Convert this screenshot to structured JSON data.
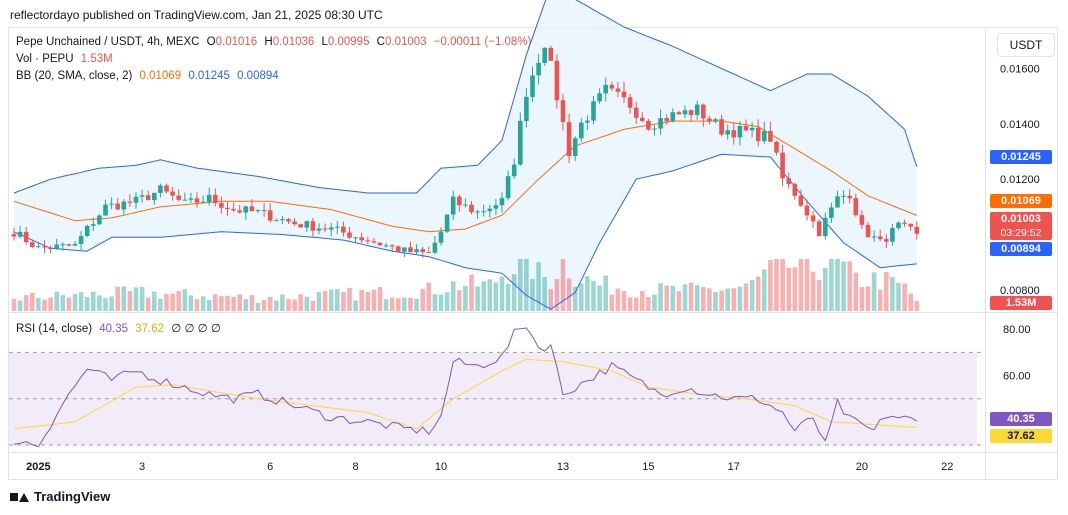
{
  "header": {
    "text": "reflectordayo published on TradingView.com, Jan 21, 2025 08:30 UTC"
  },
  "legend": {
    "symbol": "Pepe Unchained / USDT, 4h, MEXC",
    "o_label": "O",
    "o_value": "0.01016",
    "h_label": "H",
    "h_value": "0.01036",
    "l_label": "L",
    "l_value": "0.00995",
    "c_label": "C",
    "c_value": "0.01003",
    "change": "−0.00011 (−1.08%)",
    "vol_label": "Vol · PEPU",
    "vol_value": "1.53M",
    "bb_label": "BB (20, SMA, close, 2)",
    "bb_basis": "0.01069",
    "bb_upper": "0.01245",
    "bb_lower": "0.00894",
    "rsi_label": "RSI (14, close)",
    "rsi_value": "40.35",
    "rsi_ma": "37.62",
    "rsi_extra": "∅ ∅ ∅ ∅"
  },
  "currency": "USDT",
  "footer": {
    "brand": "TradingView"
  },
  "badges": {
    "upper": "0.01245",
    "basis": "0.01069",
    "close": "0.01003",
    "countdown": "03:29:52",
    "lower": "0.00894",
    "volume": "1.53M",
    "rsi": "40.35",
    "rsi_ma": "37.62"
  },
  "colors": {
    "up": "#26a69a",
    "down": "#ef5350",
    "bb_basis": "#ff6d00",
    "bb_band": "#2962ff",
    "bb_fill": "#e3f2fd",
    "rsi_line": "#7e57c2",
    "rsi_ma": "#fdd835",
    "rsi_bg": "#ede7f6"
  },
  "chart_data": {
    "type": "candlestick",
    "price_axis": {
      "ticks": [
        "0.01600",
        "0.01400",
        "0.01200",
        "0.01000",
        "0.00800"
      ],
      "ylim": [
        0.0072,
        0.0175
      ]
    },
    "rsi_axis": {
      "ticks": [
        "80.00",
        "60.00"
      ],
      "levels": [
        70,
        50,
        30
      ],
      "ylim": [
        27,
        87
      ]
    },
    "time_axis": {
      "ticks": [
        "2025",
        "3",
        "6",
        "8",
        "10",
        "13",
        "15",
        "17",
        "20",
        "22"
      ],
      "tick_index": [
        4,
        21,
        42,
        56,
        70,
        90,
        104,
        118,
        139,
        153
      ]
    },
    "anchors": {
      "close": [
        [
          0,
          0.0101
        ],
        [
          4,
          0.0095
        ],
        [
          10,
          0.0096
        ],
        [
          12,
          0.0102
        ],
        [
          15,
          0.011
        ],
        [
          20,
          0.0112
        ],
        [
          24,
          0.0116
        ],
        [
          28,
          0.0111
        ],
        [
          32,
          0.0113
        ],
        [
          36,
          0.0109
        ],
        [
          40,
          0.0108
        ],
        [
          46,
          0.0104
        ],
        [
          52,
          0.0102
        ],
        [
          58,
          0.0098
        ],
        [
          64,
          0.0094
        ],
        [
          68,
          0.0093
        ],
        [
          70,
          0.0101
        ],
        [
          72,
          0.0112
        ],
        [
          76,
          0.0108
        ],
        [
          80,
          0.0112
        ],
        [
          82,
          0.0127
        ],
        [
          84,
          0.0152
        ],
        [
          87,
          0.017
        ],
        [
          89,
          0.015
        ],
        [
          91,
          0.013
        ],
        [
          93,
          0.014
        ],
        [
          97,
          0.0152
        ],
        [
          101,
          0.0147
        ],
        [
          104,
          0.014
        ],
        [
          108,
          0.0143
        ],
        [
          112,
          0.0145
        ],
        [
          116,
          0.0138
        ],
        [
          120,
          0.0137
        ],
        [
          124,
          0.0135
        ],
        [
          126,
          0.012
        ],
        [
          128,
          0.0115
        ],
        [
          132,
          0.0101
        ],
        [
          135,
          0.0113
        ],
        [
          137,
          0.0115
        ],
        [
          139,
          0.0102
        ],
        [
          142,
          0.0097
        ],
        [
          145,
          0.0103
        ],
        [
          148,
          0.01003
        ]
      ],
      "rsi": [
        [
          0,
          32
        ],
        [
          4,
          30
        ],
        [
          8,
          48
        ],
        [
          12,
          63
        ],
        [
          16,
          58
        ],
        [
          20,
          62
        ],
        [
          24,
          58
        ],
        [
          28,
          55
        ],
        [
          32,
          52
        ],
        [
          36,
          50
        ],
        [
          40,
          52
        ],
        [
          46,
          47
        ],
        [
          52,
          42
        ],
        [
          58,
          40
        ],
        [
          64,
          37
        ],
        [
          68,
          36
        ],
        [
          70,
          42
        ],
        [
          72,
          66
        ],
        [
          76,
          64
        ],
        [
          80,
          68
        ],
        [
          82,
          78
        ],
        [
          84,
          82
        ],
        [
          86,
          72
        ],
        [
          88,
          73
        ],
        [
          90,
          52
        ],
        [
          94,
          58
        ],
        [
          98,
          64
        ],
        [
          102,
          58
        ],
        [
          106,
          52
        ],
        [
          110,
          55
        ],
        [
          114,
          52
        ],
        [
          118,
          50
        ],
        [
          122,
          50
        ],
        [
          126,
          44
        ],
        [
          128,
          36
        ],
        [
          131,
          42
        ],
        [
          133,
          30
        ],
        [
          135,
          48
        ],
        [
          137,
          41
        ],
        [
          141,
          36
        ],
        [
          143,
          43
        ],
        [
          148,
          40.35
        ]
      ],
      "rsi_ma": [
        [
          0,
          37
        ],
        [
          10,
          40
        ],
        [
          20,
          55
        ],
        [
          26,
          56
        ],
        [
          40,
          50
        ],
        [
          58,
          44
        ],
        [
          66,
          37
        ],
        [
          72,
          50
        ],
        [
          80,
          62
        ],
        [
          84,
          67
        ],
        [
          90,
          66
        ],
        [
          98,
          62
        ],
        [
          104,
          55
        ],
        [
          112,
          52
        ],
        [
          120,
          50
        ],
        [
          128,
          47
        ],
        [
          134,
          40
        ],
        [
          140,
          39
        ],
        [
          148,
          37.62
        ]
      ],
      "bb_basis": [
        [
          0,
          0.0112
        ],
        [
          10,
          0.0105
        ],
        [
          16,
          0.0106
        ],
        [
          24,
          0.011
        ],
        [
          34,
          0.0112
        ],
        [
          42,
          0.0112
        ],
        [
          52,
          0.0109
        ],
        [
          62,
          0.0103
        ],
        [
          68,
          0.0101
        ],
        [
          74,
          0.0102
        ],
        [
          80,
          0.0107
        ],
        [
          86,
          0.012
        ],
        [
          92,
          0.0132
        ],
        [
          100,
          0.0138
        ],
        [
          108,
          0.0141
        ],
        [
          116,
          0.0141
        ],
        [
          122,
          0.0139
        ],
        [
          128,
          0.0131
        ],
        [
          134,
          0.0123
        ],
        [
          140,
          0.0114
        ],
        [
          148,
          0.01069
        ]
      ],
      "bb_upper": [
        [
          0,
          0.0115
        ],
        [
          6,
          0.012
        ],
        [
          14,
          0.0124
        ],
        [
          20,
          0.0125
        ],
        [
          24,
          0.0127
        ],
        [
          30,
          0.0124
        ],
        [
          40,
          0.0121
        ],
        [
          50,
          0.0117
        ],
        [
          58,
          0.0115
        ],
        [
          66,
          0.0115
        ],
        [
          70,
          0.0124
        ],
        [
          76,
          0.0125
        ],
        [
          80,
          0.0134
        ],
        [
          84,
          0.0165
        ],
        [
          88,
          0.019
        ],
        [
          92,
          0.0185
        ],
        [
          100,
          0.0175
        ],
        [
          108,
          0.0168
        ],
        [
          116,
          0.016
        ],
        [
          124,
          0.0152
        ],
        [
          130,
          0.0158
        ],
        [
          134,
          0.0158
        ],
        [
          140,
          0.015
        ],
        [
          146,
          0.0138
        ],
        [
          148,
          0.01245
        ]
      ],
      "bb_lower": [
        [
          0,
          0.0101
        ],
        [
          6,
          0.0095
        ],
        [
          12,
          0.0094
        ],
        [
          16,
          0.0099
        ],
        [
          24,
          0.0099
        ],
        [
          34,
          0.0101
        ],
        [
          44,
          0.01
        ],
        [
          54,
          0.0098
        ],
        [
          62,
          0.0094
        ],
        [
          68,
          0.0092
        ],
        [
          74,
          0.0088
        ],
        [
          80,
          0.0086
        ],
        [
          84,
          0.0078
        ],
        [
          88,
          0.0073
        ],
        [
          92,
          0.0079
        ],
        [
          96,
          0.0097
        ],
        [
          102,
          0.012
        ],
        [
          108,
          0.0123
        ],
        [
          116,
          0.0129
        ],
        [
          124,
          0.0128
        ],
        [
          130,
          0.0112
        ],
        [
          136,
          0.0097
        ],
        [
          142,
          0.0088
        ],
        [
          148,
          0.00894
        ]
      ],
      "volume": [
        [
          0,
          0.25
        ],
        [
          10,
          0.3
        ],
        [
          20,
          0.35
        ],
        [
          30,
          0.3
        ],
        [
          40,
          0.25
        ],
        [
          50,
          0.3
        ],
        [
          60,
          0.35
        ],
        [
          68,
          0.4
        ],
        [
          72,
          0.5
        ],
        [
          78,
          0.5
        ],
        [
          82,
          0.9
        ],
        [
          84,
          1.0
        ],
        [
          86,
          0.7
        ],
        [
          88,
          0.6
        ],
        [
          90,
          1.0
        ],
        [
          92,
          0.7
        ],
        [
          96,
          0.5
        ],
        [
          104,
          0.4
        ],
        [
          112,
          0.4
        ],
        [
          120,
          0.45
        ],
        [
          126,
          0.9
        ],
        [
          130,
          0.8
        ],
        [
          134,
          1.0
        ],
        [
          138,
          0.6
        ],
        [
          142,
          0.6
        ],
        [
          146,
          0.45
        ],
        [
          148,
          0.2
        ]
      ]
    }
  }
}
